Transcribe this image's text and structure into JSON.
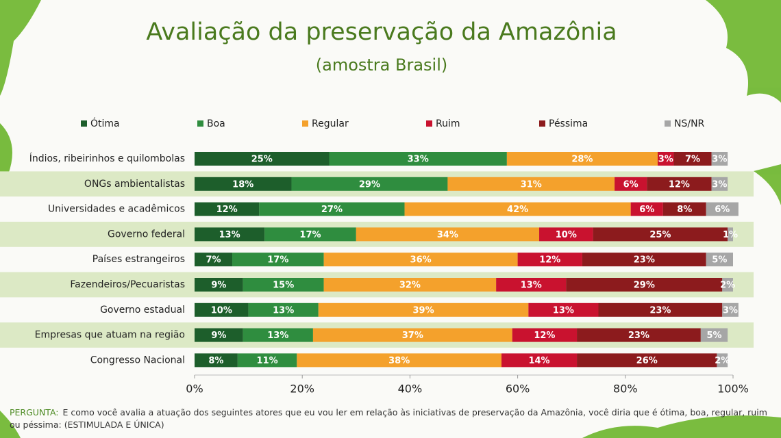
{
  "chart_data": {
    "type": "stacked-bar-horizontal",
    "title": "Avaliação  da preservação da Amazônia",
    "subtitle": "(amostra Brasil)",
    "categories": [
      "Índios, ribeirinhos e quilombolas",
      "ONGs ambientalistas",
      "Universidades e acadêmicos",
      "Governo federal",
      "Países estrangeiros",
      "Fazendeiros/Pecuaristas",
      "Governo estadual",
      "Empresas que atuam na região",
      "Congresso Nacional"
    ],
    "series": [
      {
        "name": "Ótima",
        "color": "#1d5e2b",
        "values": [
          25,
          18,
          12,
          13,
          7,
          9,
          10,
          9,
          8
        ],
        "value_labels": [
          "25%",
          "18%",
          "12%",
          "13%",
          "7%",
          "9%",
          "10%",
          "9%",
          "8%"
        ]
      },
      {
        "name": "Boa",
        "color": "#2f8d3f",
        "values": [
          33,
          29,
          27,
          17,
          17,
          15,
          13,
          13,
          11
        ],
        "value_labels": [
          "33%",
          "29%",
          "27%",
          "17%",
          "17%",
          "15%",
          "13%",
          "13%",
          "11%"
        ]
      },
      {
        "name": "Regular",
        "color": "#f4a12c",
        "values": [
          28,
          31,
          42,
          34,
          36,
          32,
          39,
          37,
          38
        ],
        "value_labels": [
          "28%",
          "31%",
          "42%",
          "34%",
          "36%",
          "32%",
          "39%",
          "37%",
          "38%"
        ]
      },
      {
        "name": "Ruim",
        "color": "#c9122f",
        "values": [
          3,
          6,
          6,
          10,
          12,
          13,
          13,
          12,
          14
        ],
        "value_labels": [
          "3%",
          "6%",
          "6%",
          "10%",
          "12%",
          "13%",
          "13%",
          "12%",
          "14%"
        ]
      },
      {
        "name": "Péssima",
        "color": "#8c1b1d",
        "values": [
          7,
          12,
          8,
          25,
          23,
          29,
          23,
          23,
          26
        ],
        "value_labels": [
          "7%",
          "12%",
          "8%",
          "25%",
          "23%",
          "29%",
          "23%",
          "23%",
          "26%"
        ]
      },
      {
        "name": "NS/NR",
        "color": "#a6a6a6",
        "values": [
          3,
          3,
          6,
          1,
          5,
          2,
          3,
          5,
          2
        ],
        "value_labels": [
          "3%",
          "3%",
          "6%",
          "1%",
          "5%",
          "2%",
          "3%",
          "5%",
          "2%"
        ]
      }
    ],
    "xlim": [
      0,
      100
    ],
    "xticks": [
      {
        "value": 0,
        "label": "0%"
      },
      {
        "value": 20,
        "label": "20%"
      },
      {
        "value": 40,
        "label": "40%"
      },
      {
        "value": 60,
        "label": "60%"
      },
      {
        "value": 80,
        "label": "80%"
      },
      {
        "value": 100,
        "label": "100%"
      }
    ],
    "legend": "top",
    "note_label": "PERGUNTA:",
    "note": "E como você avalia a atuação dos seguintes atores que eu vou ler em relação às iniciativas de preservação da Amazônia, você diria que é ótima, boa, regular, ruim ou péssima: (ESTIMULADA E ÚNICA)"
  }
}
